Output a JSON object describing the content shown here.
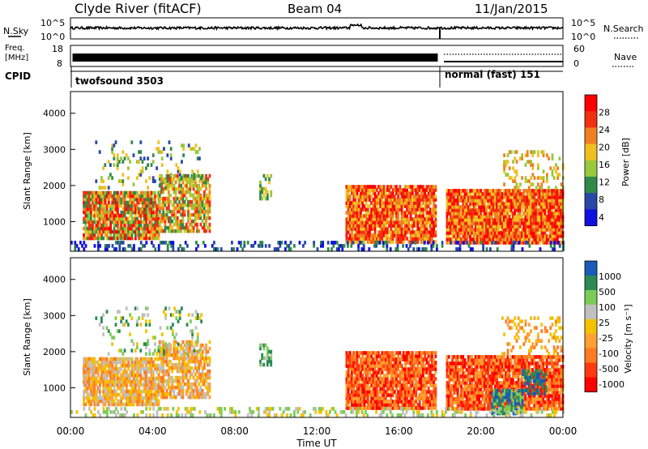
{
  "header": {
    "station": "Clyde River (fitACF)",
    "beam": "Beam 04",
    "date": "11/Jan/2015"
  },
  "strips": {
    "nsky_label": "N.Sky",
    "nsearch_label": "N.Search",
    "sky_ticks": [
      "10^5",
      "10^0"
    ],
    "search_ticks": [
      "10^5",
      "10^0"
    ],
    "freq_label_line1": "Freq.",
    "freq_label_line2": "[MHz]",
    "freq_ticks": [
      "18",
      "8"
    ],
    "nave_label": "Nave",
    "nave_ticks": [
      "60",
      "0"
    ],
    "cpid_label": "CPID",
    "cpid_segments": [
      {
        "label": "twofsound 3503",
        "start_hr": 0.0,
        "end_hr": 18.0
      },
      {
        "label": "normal (fast) 151",
        "start_hr": 18.0,
        "end_hr": 24.0
      }
    ]
  },
  "x_axis": {
    "ticks": [
      "00:00",
      "04:00",
      "08:00",
      "12:00",
      "16:00",
      "20:00",
      "00:00"
    ],
    "label": "Time UT"
  },
  "chart_data": [
    {
      "type": "heatmap",
      "panel": "power",
      "ylabel": "Slant Range [km]",
      "yticks": [
        "1000",
        "2000",
        "3000",
        "4000"
      ],
      "ylim": [
        180,
        4600
      ],
      "xlim": [
        0,
        24
      ],
      "colorbar_label": "Power [dB]",
      "colorbar_ticks": [
        "28",
        "24",
        "20",
        "16",
        "12",
        "8",
        "4"
      ],
      "colors": [
        "#1010e0",
        "#2848a8",
        "#2f8a4a",
        "#98c83c",
        "#f0c020",
        "#f08020",
        "#f03010",
        "#ff0000"
      ],
      "blobs": [
        {
          "t0": 0.6,
          "t1": 4.3,
          "r0": 500,
          "r1": 1800,
          "lvl": [
            2,
            7
          ],
          "dens": 0.9
        },
        {
          "t0": 4.3,
          "t1": 6.8,
          "r0": 700,
          "r1": 2300,
          "lvl": [
            2,
            6
          ],
          "dens": 0.7
        },
        {
          "t0": 1.2,
          "t1": 6.4,
          "r0": 1900,
          "r1": 3200,
          "lvl": [
            1,
            4
          ],
          "dens": 0.15
        },
        {
          "t0": 13.4,
          "t1": 17.8,
          "r0": 400,
          "r1": 2000,
          "lvl": [
            4,
            7
          ],
          "dens": 0.9
        },
        {
          "t0": 18.3,
          "t1": 24.0,
          "r0": 380,
          "r1": 1900,
          "lvl": [
            4,
            7
          ],
          "dens": 0.95
        },
        {
          "t0": 21.0,
          "t1": 24.0,
          "r0": 1900,
          "r1": 2900,
          "lvl": [
            3,
            5
          ],
          "dens": 0.25
        },
        {
          "t0": 9.2,
          "t1": 9.8,
          "r0": 1600,
          "r1": 2300,
          "lvl": [
            2,
            4
          ],
          "dens": 0.5
        },
        {
          "t0": 0.0,
          "t1": 24.0,
          "r0": 200,
          "r1": 450,
          "lvl": [
            0,
            2
          ],
          "dens": 0.3
        }
      ]
    },
    {
      "type": "heatmap",
      "panel": "velocity",
      "ylabel": "Slant Range [km]",
      "yticks": [
        "1000",
        "2000",
        "3000",
        "4000"
      ],
      "ylim": [
        180,
        4600
      ],
      "xlim": [
        0,
        24
      ],
      "colorbar_label": "Velocity [m s⁻¹]",
      "colorbar_ticks": [
        "1000",
        "500",
        "100",
        "25",
        "-25",
        "-100",
        "-500",
        "-1000"
      ],
      "colors": [
        "#ff0000",
        "#ff3a10",
        "#ff7a20",
        "#ffa030",
        "#f2c200",
        "#c0c0c0",
        "#7ccc58",
        "#2a8a52",
        "#1a5ab8"
      ],
      "blobs": [
        {
          "t0": 0.6,
          "t1": 4.3,
          "r0": 500,
          "r1": 1800,
          "lvl": [
            2,
            5
          ],
          "dens": 0.85
        },
        {
          "t0": 4.3,
          "t1": 6.8,
          "r0": 700,
          "r1": 2300,
          "lvl": [
            2,
            5
          ],
          "dens": 0.7
        },
        {
          "t0": 1.2,
          "t1": 6.4,
          "r0": 1900,
          "r1": 3200,
          "lvl": [
            4,
            7
          ],
          "dens": 0.15
        },
        {
          "t0": 13.4,
          "t1": 17.8,
          "r0": 400,
          "r1": 2000,
          "lvl": [
            0,
            3
          ],
          "dens": 0.9
        },
        {
          "t0": 18.3,
          "t1": 24.0,
          "r0": 380,
          "r1": 1900,
          "lvl": [
            0,
            3
          ],
          "dens": 0.9
        },
        {
          "t0": 20.5,
          "t1": 22.0,
          "r0": 250,
          "r1": 900,
          "lvl": [
            6,
            8
          ],
          "dens": 0.8
        },
        {
          "t0": 22.0,
          "t1": 23.2,
          "r0": 800,
          "r1": 1500,
          "lvl": [
            7,
            8
          ],
          "dens": 0.5
        },
        {
          "t0": 21.0,
          "t1": 24.0,
          "r0": 1900,
          "r1": 2900,
          "lvl": [
            2,
            4
          ],
          "dens": 0.25
        },
        {
          "t0": 9.2,
          "t1": 9.8,
          "r0": 1600,
          "r1": 2300,
          "lvl": [
            5,
            7
          ],
          "dens": 0.5
        },
        {
          "t0": 0.0,
          "t1": 24.0,
          "r0": 200,
          "r1": 450,
          "lvl": [
            4,
            6
          ],
          "dens": 0.3
        }
      ]
    }
  ]
}
